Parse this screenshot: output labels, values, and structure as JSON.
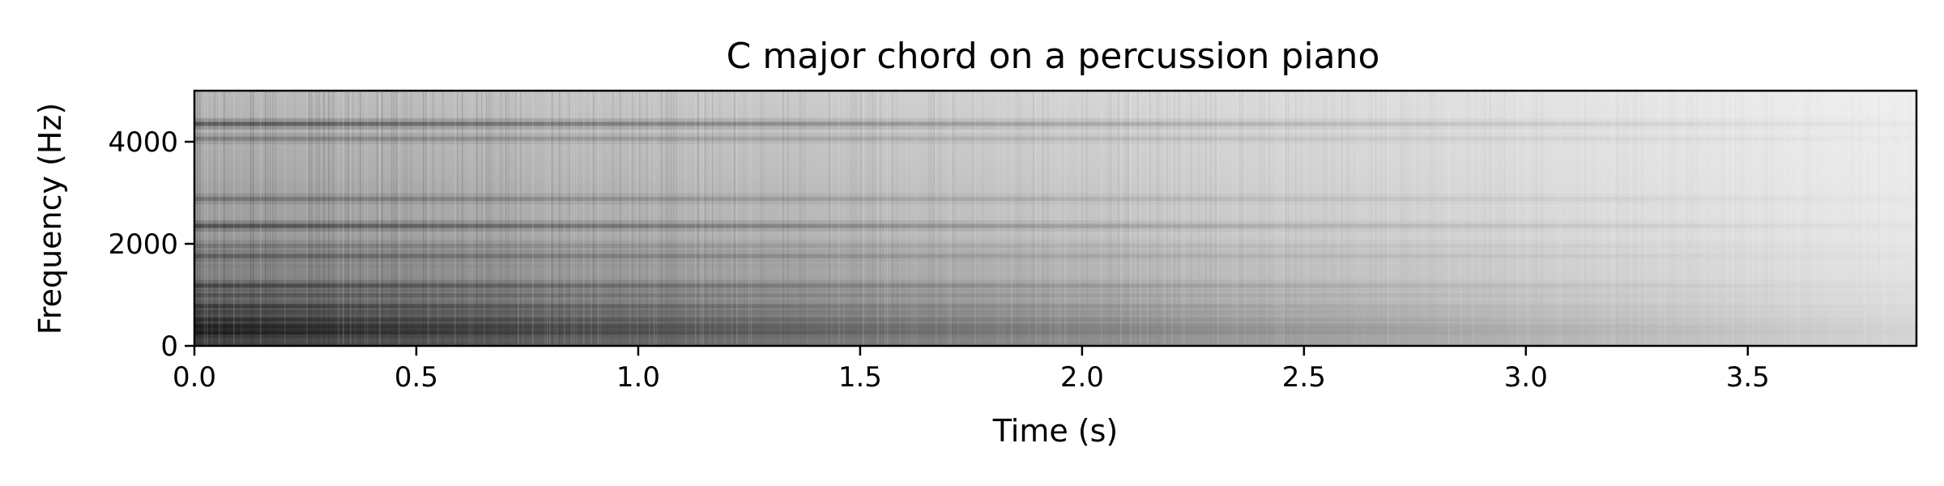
{
  "chart_data": {
    "type": "heatmap",
    "subtype": "spectrogram",
    "title": "C major chord on a percussion piano",
    "xlabel": "Time (s)",
    "ylabel": "Frequency (Hz)",
    "xlim": [
      0,
      3.88
    ],
    "ylim": [
      0,
      5000
    ],
    "xticks": [
      0.0,
      0.5,
      1.0,
      1.5,
      2.0,
      2.5,
      3.0,
      3.5
    ],
    "xtick_labels": [
      "0.0",
      "0.5",
      "1.0",
      "1.5",
      "2.0",
      "2.5",
      "3.0",
      "3.5"
    ],
    "yticks": [
      0,
      2000,
      4000
    ],
    "ytick_labels": [
      "0",
      "2000",
      "4000"
    ],
    "colormap": "gray_r",
    "grid": false,
    "harmonics": [
      {
        "freq_hz": 260,
        "strength": 1.0,
        "decay": 0.55
      },
      {
        "freq_hz": 330,
        "strength": 0.9,
        "decay": 0.6
      },
      {
        "freq_hz": 390,
        "strength": 0.95,
        "decay": 0.55
      },
      {
        "freq_hz": 520,
        "strength": 0.9,
        "decay": 0.6
      },
      {
        "freq_hz": 660,
        "strength": 0.8,
        "decay": 0.65
      },
      {
        "freq_hz": 780,
        "strength": 0.85,
        "decay": 0.6
      },
      {
        "freq_hz": 990,
        "strength": 0.75,
        "decay": 0.7
      },
      {
        "freq_hz": 1180,
        "strength": 0.8,
        "decay": 0.75
      },
      {
        "freq_hz": 1560,
        "strength": 0.55,
        "decay": 0.85
      },
      {
        "freq_hz": 1760,
        "strength": 0.7,
        "decay": 0.75
      },
      {
        "freq_hz": 1960,
        "strength": 0.6,
        "decay": 0.8
      },
      {
        "freq_hz": 2350,
        "strength": 0.75,
        "decay": 0.8
      },
      {
        "freq_hz": 2880,
        "strength": 0.6,
        "decay": 0.85
      },
      {
        "freq_hz": 3100,
        "strength": 0.4,
        "decay": 0.9
      },
      {
        "freq_hz": 4060,
        "strength": 0.55,
        "decay": 0.85
      },
      {
        "freq_hz": 4350,
        "strength": 0.7,
        "decay": 0.8
      }
    ],
    "colors": {
      "background": "#ffffff",
      "axis": "#000000"
    }
  }
}
